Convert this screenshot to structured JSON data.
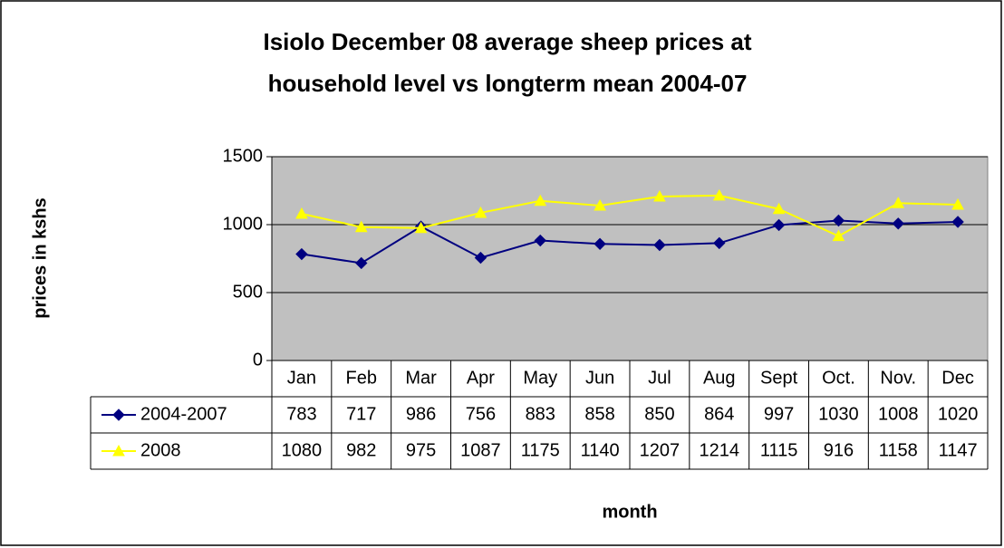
{
  "chart_data": {
    "type": "line",
    "title": "Isiolo December 08 average sheep prices at household level vs longterm mean 2004-07",
    "x_label": "month",
    "y_label": "prices in kshs",
    "categories": [
      "Jan",
      "Feb",
      "Mar",
      "Apr",
      "May",
      "Jun",
      "Jul",
      "Aug",
      "Sept",
      "Oct.",
      "Nov.",
      "Dec"
    ],
    "series": [
      {
        "name": "2004-2007",
        "color": "#000080",
        "marker": "diamond",
        "values": [
          783,
          717,
          986,
          756,
          883,
          858,
          850,
          864,
          997,
          1030,
          1008,
          1020
        ]
      },
      {
        "name": "2008",
        "color": "#ffff00",
        "marker": "triangle",
        "values": [
          1080,
          982,
          975,
          1087,
          1175,
          1140,
          1207,
          1214,
          1115,
          916,
          1158,
          1147
        ]
      }
    ],
    "ylim": [
      0,
      1500
    ],
    "yticks": [
      0,
      500,
      1000,
      1500
    ],
    "grid": true,
    "plot_background": "#c0c0c0",
    "data_table": true
  }
}
